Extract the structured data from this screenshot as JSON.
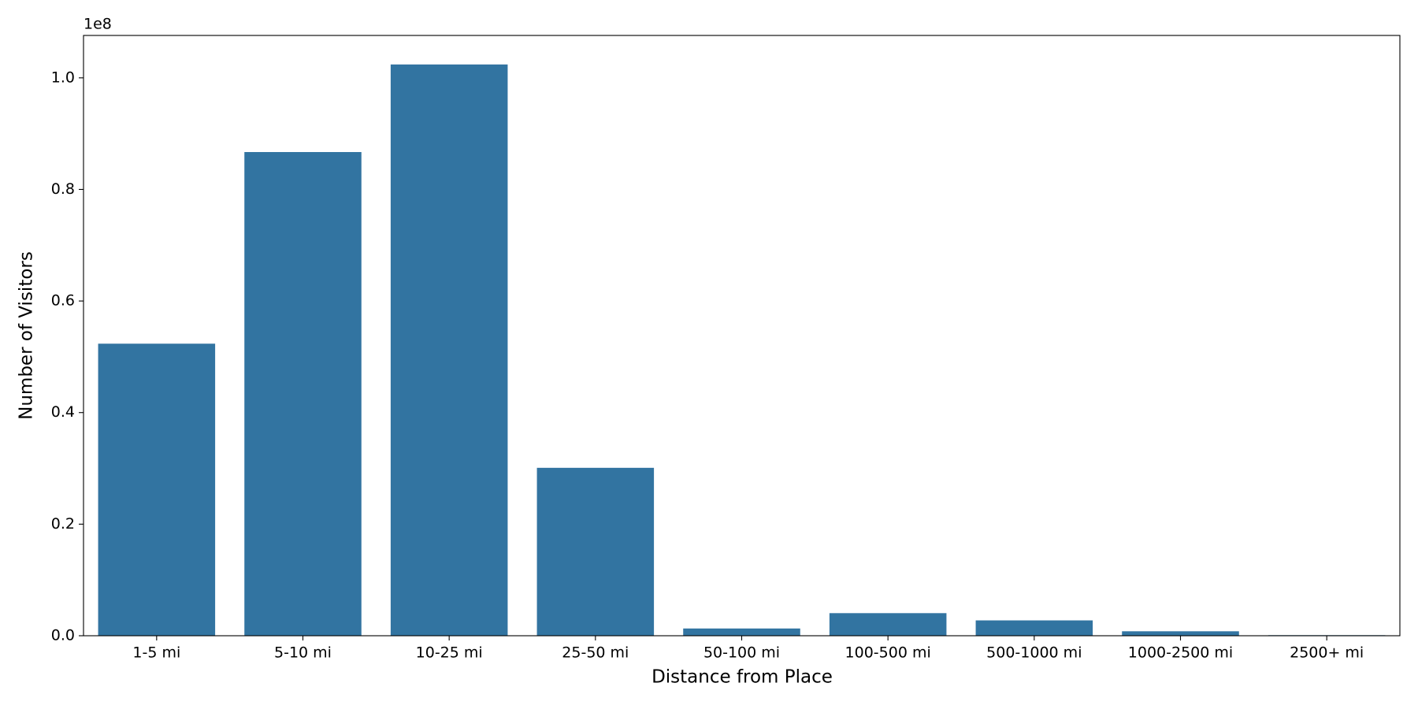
{
  "chart_data": {
    "type": "bar",
    "xlabel": "Distance from Place",
    "ylabel": "Number of Visitors",
    "y_offset_label": "1e8",
    "categories": [
      "1-5 mi",
      "5-10 mi",
      "10-25 mi",
      "25-50 mi",
      "50-100 mi",
      "100-500 mi",
      "500-1000 mi",
      "1000-2500 mi",
      "2500+ mi"
    ],
    "values": [
      52350000,
      86700000,
      102400000,
      30100000,
      1300000,
      4050000,
      2750000,
      800000,
      100000
    ],
    "color": "#3274a1",
    "ylim": [
      0,
      107600000
    ],
    "yticks": [
      {
        "value": 0,
        "label": "0.0"
      },
      {
        "value": 20000000,
        "label": "0.2"
      },
      {
        "value": 40000000,
        "label": "0.4"
      },
      {
        "value": 60000000,
        "label": "0.6"
      },
      {
        "value": 80000000,
        "label": "0.8"
      },
      {
        "value": 100000000,
        "label": "1.0"
      }
    ],
    "grid": false
  }
}
